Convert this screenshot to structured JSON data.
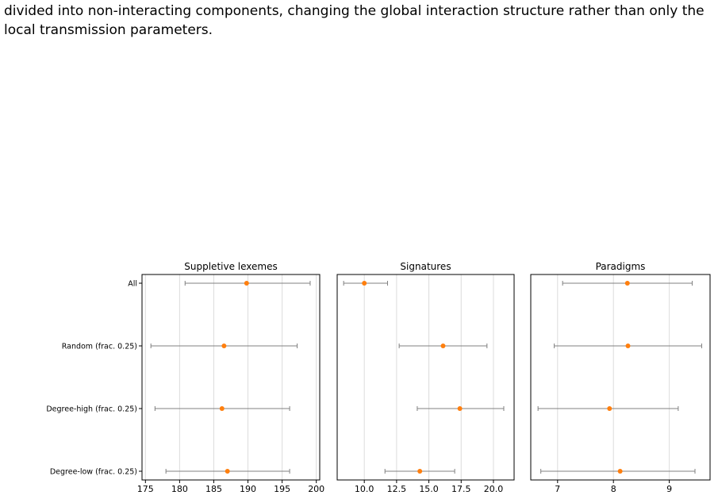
{
  "caption": {
    "lines": [
      "divided into non-interacting components, changing the global interaction structure rather than only the",
      "local transmission parameters."
    ]
  },
  "colors": {
    "point": "#ff7f0e",
    "errorbar": "#808080",
    "grid": "#dcdcdc"
  },
  "chart_data": [
    {
      "type": "scatter",
      "title": "Suppletive lexemes",
      "categories": [
        "All",
        "Random (frac. 0.25)",
        "Degree-high (frac. 0.25)",
        "Degree-low (frac. 0.25)"
      ],
      "values": [
        189.8,
        186.5,
        186.2,
        187.0
      ],
      "err_low": [
        180.8,
        175.8,
        176.4,
        178.0
      ],
      "err_high": [
        199.1,
        197.2,
        196.1,
        196.1
      ],
      "xlim": [
        174.5,
        200.5
      ],
      "xticks": [
        175,
        180,
        185,
        190,
        195,
        200
      ],
      "xtick_labels": [
        "175",
        "180",
        "185",
        "190",
        "195",
        "200"
      ],
      "grid": true
    },
    {
      "type": "scatter",
      "title": "Signatures",
      "categories": [
        "All",
        "Random (frac. 0.25)",
        "Degree-high (frac. 0.25)",
        "Degree-low (frac. 0.25)"
      ],
      "values": [
        10.0,
        16.1,
        17.4,
        14.3
      ],
      "err_low": [
        8.4,
        12.7,
        14.1,
        11.6
      ],
      "err_high": [
        11.8,
        19.5,
        20.8,
        17.0
      ],
      "xlim": [
        7.9,
        21.6
      ],
      "xticks": [
        10.0,
        12.5,
        15.0,
        17.5,
        20.0
      ],
      "xtick_labels": [
        "10.0",
        "12.5",
        "15.0",
        "17.5",
        "20.0"
      ],
      "grid": true
    },
    {
      "type": "scatter",
      "title": "Paradigms",
      "categories": [
        "All",
        "Random (frac. 0.25)",
        "Degree-high (frac. 0.25)",
        "Degree-low (frac. 0.25)"
      ],
      "values": [
        8.25,
        8.26,
        7.93,
        8.12
      ],
      "err_low": [
        7.09,
        6.94,
        6.65,
        6.7
      ],
      "err_high": [
        9.41,
        9.58,
        9.16,
        9.46
      ],
      "xlim": [
        6.52,
        9.73
      ],
      "xticks": [
        7,
        8,
        9
      ],
      "xtick_labels": [
        "7",
        "8",
        "9"
      ],
      "grid": true
    }
  ]
}
